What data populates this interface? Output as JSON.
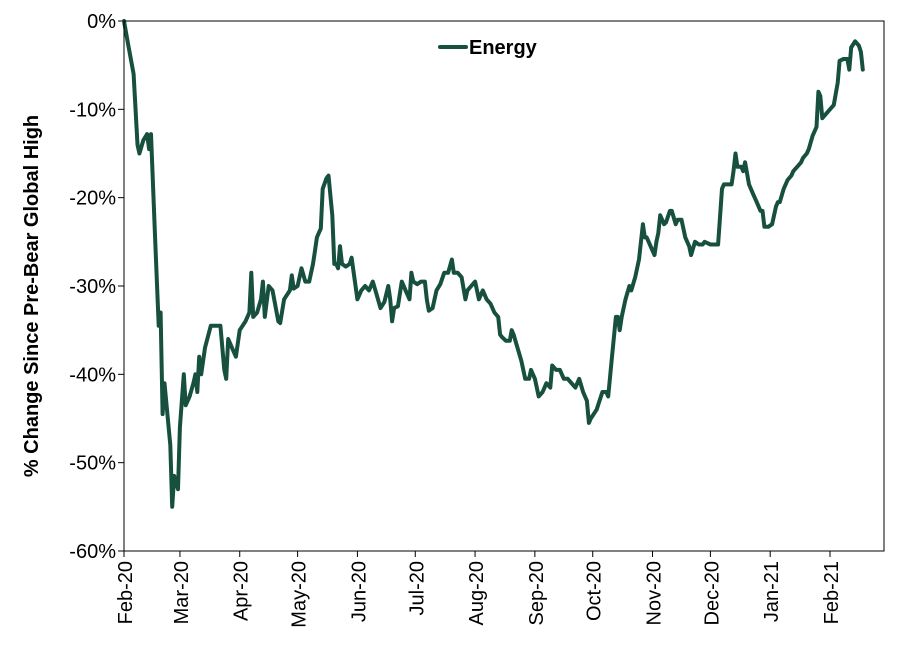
{
  "chart_data": {
    "type": "line",
    "ylabel": "% Change Since Pre-Bear Global High",
    "xlabel": "",
    "ylim": [
      -60,
      0
    ],
    "y_ticks": [
      0,
      -10,
      -20,
      -30,
      -40,
      -50,
      -60
    ],
    "y_tick_labels": [
      "0%",
      "-10%",
      "-20%",
      "-30%",
      "-40%",
      "-50%",
      "-60%"
    ],
    "x_tick_labels": [
      "Feb-20",
      "Mar-20",
      "Apr-20",
      "May-20",
      "Jun-20",
      "Jul-20",
      "Aug-20",
      "Sep-20",
      "Oct-20",
      "Nov-20",
      "Dec-20",
      "Jan-21",
      "Feb-21"
    ],
    "x_tick_dates": [
      "2020-02-01",
      "2020-03-01",
      "2020-04-01",
      "2020-05-01",
      "2020-06-01",
      "2020-07-01",
      "2020-08-01",
      "2020-09-01",
      "2020-10-01",
      "2020-11-01",
      "2020-12-01",
      "2021-01-01",
      "2021-02-01"
    ],
    "x_range": [
      "2020-02-01",
      "2021-03-01"
    ],
    "legend_position": "top-center",
    "grid": false,
    "series": [
      {
        "name": "Energy",
        "color": "#17503f",
        "points": [
          [
            "2020-02-01",
            0
          ],
          [
            "2020-02-03",
            -2.5
          ],
          [
            "2020-02-06",
            -6
          ],
          [
            "2020-02-08",
            -14
          ],
          [
            "2020-02-09",
            -15
          ],
          [
            "2020-02-11",
            -13.5
          ],
          [
            "2020-02-13",
            -12.8
          ],
          [
            "2020-02-14",
            -14.5
          ],
          [
            "2020-02-15",
            -12.8
          ],
          [
            "2020-02-17",
            -24
          ],
          [
            "2020-02-19",
            -34.5
          ],
          [
            "2020-02-20",
            -33
          ],
          [
            "2020-02-21",
            -44.5
          ],
          [
            "2020-02-22",
            -41
          ],
          [
            "2020-02-25",
            -48
          ],
          [
            "2020-02-26",
            -55
          ],
          [
            "2020-02-27",
            -51.5
          ],
          [
            "2020-02-29",
            -53
          ],
          [
            "2020-03-01",
            -46
          ],
          [
            "2020-03-03",
            -40
          ],
          [
            "2020-03-04",
            -43.5
          ],
          [
            "2020-03-06",
            -42.5
          ],
          [
            "2020-03-08",
            -41
          ],
          [
            "2020-03-09",
            -40
          ],
          [
            "2020-03-10",
            -42
          ],
          [
            "2020-03-11",
            -38
          ],
          [
            "2020-03-12",
            -40
          ],
          [
            "2020-03-14",
            -37
          ],
          [
            "2020-03-17",
            -34.5
          ],
          [
            "2020-03-22",
            -34.5
          ],
          [
            "2020-03-24",
            -39.5
          ],
          [
            "2020-03-25",
            -40.5
          ],
          [
            "2020-03-26",
            -36
          ],
          [
            "2020-03-28",
            -37
          ],
          [
            "2020-03-30",
            -38
          ],
          [
            "2020-04-01",
            -35
          ],
          [
            "2020-04-04",
            -34
          ],
          [
            "2020-04-06",
            -33
          ],
          [
            "2020-04-07",
            -28.5
          ],
          [
            "2020-04-08",
            -33.5
          ],
          [
            "2020-04-10",
            -33
          ],
          [
            "2020-04-12",
            -31.5
          ],
          [
            "2020-04-13",
            -29.5
          ],
          [
            "2020-04-14",
            -33.5
          ],
          [
            "2020-04-16",
            -30
          ],
          [
            "2020-04-18",
            -30.5
          ],
          [
            "2020-04-21",
            -34
          ],
          [
            "2020-04-22",
            -34.2
          ],
          [
            "2020-04-24",
            -31.5
          ],
          [
            "2020-04-27",
            -30.5
          ],
          [
            "2020-04-28",
            -28.8
          ],
          [
            "2020-04-29",
            -30.3
          ],
          [
            "2020-05-01",
            -30
          ],
          [
            "2020-05-03",
            -28
          ],
          [
            "2020-05-05",
            -29.5
          ],
          [
            "2020-05-07",
            -29.5
          ],
          [
            "2020-05-09",
            -27.5
          ],
          [
            "2020-05-10",
            -26
          ],
          [
            "2020-05-11",
            -24.5
          ],
          [
            "2020-05-12",
            -24
          ],
          [
            "2020-05-13",
            -23.5
          ],
          [
            "2020-05-14",
            -19
          ],
          [
            "2020-05-16",
            -17.8
          ],
          [
            "2020-05-17",
            -17.5
          ],
          [
            "2020-05-19",
            -22
          ],
          [
            "2020-05-20",
            -27.5
          ],
          [
            "2020-05-21",
            -27.5
          ],
          [
            "2020-05-22",
            -28
          ],
          [
            "2020-05-23",
            -25.5
          ],
          [
            "2020-05-24",
            -27.5
          ],
          [
            "2020-05-26",
            -27.8
          ],
          [
            "2020-05-28",
            -27.5
          ],
          [
            "2020-05-29",
            -26.8
          ],
          [
            "2020-06-01",
            -31.5
          ],
          [
            "2020-06-03",
            -30.5
          ],
          [
            "2020-06-05",
            -30
          ],
          [
            "2020-06-07",
            -30.5
          ],
          [
            "2020-06-09",
            -29.5
          ],
          [
            "2020-06-11",
            -31
          ],
          [
            "2020-06-13",
            -32.5
          ],
          [
            "2020-06-15",
            -31.8
          ],
          [
            "2020-06-17",
            -30
          ],
          [
            "2020-06-18",
            -31.5
          ],
          [
            "2020-06-19",
            -34
          ],
          [
            "2020-06-20",
            -32.5
          ],
          [
            "2020-06-22",
            -32.3
          ],
          [
            "2020-06-24",
            -29.5
          ],
          [
            "2020-06-26",
            -30.5
          ],
          [
            "2020-06-28",
            -31.5
          ],
          [
            "2020-06-29",
            -28.5
          ],
          [
            "2020-06-30",
            -29.5
          ],
          [
            "2020-07-02",
            -29.8
          ],
          [
            "2020-07-04",
            -29.5
          ],
          [
            "2020-07-06",
            -29.5
          ],
          [
            "2020-07-07",
            -31.5
          ],
          [
            "2020-07-08",
            -32.8
          ],
          [
            "2020-07-10",
            -32.5
          ],
          [
            "2020-07-12",
            -30.5
          ],
          [
            "2020-07-14",
            -29.8
          ],
          [
            "2020-07-16",
            -28.5
          ],
          [
            "2020-07-18",
            -28.5
          ],
          [
            "2020-07-20",
            -27
          ],
          [
            "2020-07-21",
            -28.5
          ],
          [
            "2020-07-23",
            -28.5
          ],
          [
            "2020-07-25",
            -29
          ],
          [
            "2020-07-27",
            -31.5
          ],
          [
            "2020-07-28",
            -30.5
          ],
          [
            "2020-07-30",
            -30
          ],
          [
            "2020-08-01",
            -29.5
          ],
          [
            "2020-08-03",
            -31.5
          ],
          [
            "2020-08-05",
            -30.5
          ],
          [
            "2020-08-07",
            -31.5
          ],
          [
            "2020-08-09",
            -32
          ],
          [
            "2020-08-11",
            -33
          ],
          [
            "2020-08-13",
            -33.5
          ],
          [
            "2020-08-14",
            -35.5
          ],
          [
            "2020-08-15",
            -35.8
          ],
          [
            "2020-08-17",
            -36.2
          ],
          [
            "2020-08-19",
            -36.2
          ],
          [
            "2020-08-20",
            -35
          ],
          [
            "2020-08-21",
            -35.5
          ],
          [
            "2020-08-23",
            -37
          ],
          [
            "2020-08-25",
            -38.5
          ],
          [
            "2020-08-26",
            -39.5
          ],
          [
            "2020-08-27",
            -40.5
          ],
          [
            "2020-08-29",
            -40.5
          ],
          [
            "2020-08-30",
            -39.5
          ],
          [
            "2020-09-01",
            -40.5
          ],
          [
            "2020-09-03",
            -42.5
          ],
          [
            "2020-09-05",
            -42
          ],
          [
            "2020-09-07",
            -41
          ],
          [
            "2020-09-09",
            -41.5
          ],
          [
            "2020-09-10",
            -39
          ],
          [
            "2020-09-12",
            -39.5
          ],
          [
            "2020-09-14",
            -39.5
          ],
          [
            "2020-09-16",
            -40.5
          ],
          [
            "2020-09-18",
            -40.5
          ],
          [
            "2020-09-20",
            -41
          ],
          [
            "2020-09-22",
            -41.5
          ],
          [
            "2020-09-24",
            -40.5
          ],
          [
            "2020-09-26",
            -42
          ],
          [
            "2020-09-28",
            -43
          ],
          [
            "2020-09-29",
            -45.5
          ],
          [
            "2020-09-30",
            -45
          ],
          [
            "2020-10-03",
            -44
          ],
          [
            "2020-10-06",
            -42
          ],
          [
            "2020-10-08",
            -42
          ],
          [
            "2020-10-09",
            -42.5
          ],
          [
            "2020-10-11",
            -38
          ],
          [
            "2020-10-13",
            -33.5
          ],
          [
            "2020-10-14",
            -33.5
          ],
          [
            "2020-10-15",
            -35
          ],
          [
            "2020-10-16",
            -33.5
          ],
          [
            "2020-10-18",
            -31.5
          ],
          [
            "2020-10-20",
            -30
          ],
          [
            "2020-10-21",
            -30.5
          ],
          [
            "2020-10-23",
            -29
          ],
          [
            "2020-10-25",
            -27
          ],
          [
            "2020-10-27",
            -23
          ],
          [
            "2020-10-28",
            -24.5
          ],
          [
            "2020-10-29",
            -24.5
          ],
          [
            "2020-11-02",
            -26.5
          ],
          [
            "2020-11-03",
            -25
          ],
          [
            "2020-11-04",
            -24
          ],
          [
            "2020-11-05",
            -22
          ],
          [
            "2020-11-07",
            -23
          ],
          [
            "2020-11-08",
            -22.8
          ],
          [
            "2020-11-10",
            -21.5
          ],
          [
            "2020-11-11",
            -21.5
          ],
          [
            "2020-11-13",
            -23
          ],
          [
            "2020-11-14",
            -22.5
          ],
          [
            "2020-11-16",
            -22.5
          ],
          [
            "2020-11-18",
            -24.5
          ],
          [
            "2020-11-20",
            -25.5
          ],
          [
            "2020-11-21",
            -26.5
          ],
          [
            "2020-11-23",
            -25
          ],
          [
            "2020-11-25",
            -25.3
          ],
          [
            "2020-11-27",
            -25.3
          ],
          [
            "2020-11-28",
            -25
          ],
          [
            "2020-12-01",
            -25.3
          ],
          [
            "2020-12-03",
            -25.3
          ],
          [
            "2020-12-05",
            -25.3
          ],
          [
            "2020-12-07",
            -19
          ],
          [
            "2020-12-08",
            -18.5
          ],
          [
            "2020-12-10",
            -18.5
          ],
          [
            "2020-12-12",
            -18.5
          ],
          [
            "2020-12-13",
            -17
          ],
          [
            "2020-12-14",
            -15
          ],
          [
            "2020-12-15",
            -16.5
          ],
          [
            "2020-12-17",
            -16.5
          ],
          [
            "2020-12-18",
            -17
          ],
          [
            "2020-12-19",
            -16
          ],
          [
            "2020-12-21",
            -18.5
          ],
          [
            "2020-12-23",
            -19.5
          ],
          [
            "2020-12-25",
            -20.5
          ],
          [
            "2020-12-27",
            -21.5
          ],
          [
            "2020-12-28",
            -21.5
          ],
          [
            "2020-12-29",
            -23.3
          ],
          [
            "2020-12-31",
            -23.3
          ],
          [
            "2021-01-02",
            -23
          ],
          [
            "2021-01-04",
            -21
          ],
          [
            "2021-01-05",
            -20.5
          ],
          [
            "2021-01-06",
            -20.5
          ],
          [
            "2021-01-08",
            -19
          ],
          [
            "2021-01-10",
            -18
          ],
          [
            "2021-01-12",
            -17.5
          ],
          [
            "2021-01-13",
            -17
          ],
          [
            "2021-01-15",
            -16.5
          ],
          [
            "2021-01-17",
            -16
          ],
          [
            "2021-01-18",
            -15.5
          ],
          [
            "2021-01-20",
            -15
          ],
          [
            "2021-01-21",
            -14.5
          ],
          [
            "2021-01-23",
            -13
          ],
          [
            "2021-01-25",
            -12
          ],
          [
            "2021-01-26",
            -8
          ],
          [
            "2021-01-27",
            -8.5
          ],
          [
            "2021-01-28",
            -11
          ],
          [
            "2021-01-30",
            -10.5
          ],
          [
            "2021-02-01",
            -10
          ],
          [
            "2021-02-03",
            -9.5
          ],
          [
            "2021-02-05",
            -7
          ],
          [
            "2021-02-06",
            -4.5
          ],
          [
            "2021-02-08",
            -4.3
          ],
          [
            "2021-02-10",
            -4.3
          ],
          [
            "2021-02-11",
            -5.5
          ],
          [
            "2021-02-12",
            -3
          ],
          [
            "2021-02-14",
            -2.3
          ],
          [
            "2021-02-16",
            -2.8
          ],
          [
            "2021-02-17",
            -3.5
          ],
          [
            "2021-02-18",
            -5.5
          ]
        ]
      }
    ]
  }
}
